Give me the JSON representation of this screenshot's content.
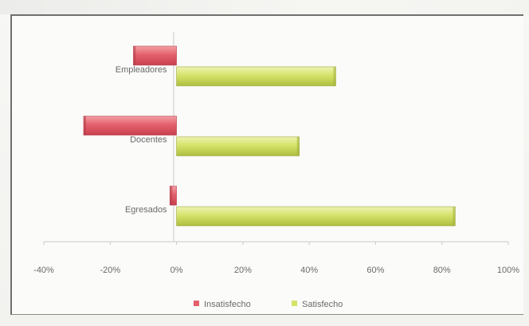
{
  "chart_data": {
    "type": "bar",
    "orientation": "horizontal",
    "categories": [
      "Empleadores",
      "Docentes",
      "Egresados"
    ],
    "series": [
      {
        "name": "Insatisfecho",
        "values": [
          -13,
          -28,
          -2
        ],
        "color": "#e4606c"
      },
      {
        "name": "Satisfecho",
        "values": [
          48,
          37,
          84
        ],
        "color": "#d6e36a"
      }
    ],
    "xlim": [
      -40,
      100
    ],
    "x_ticks": [
      -40,
      -20,
      0,
      20,
      40,
      60,
      80,
      100
    ],
    "x_tick_labels": [
      "-40%",
      "-20%",
      "0%",
      "20%",
      "40%",
      "60%",
      "80%",
      "100%"
    ],
    "legend_placement": "bottom",
    "grid": false,
    "title": "",
    "xlabel": "",
    "ylabel": ""
  }
}
